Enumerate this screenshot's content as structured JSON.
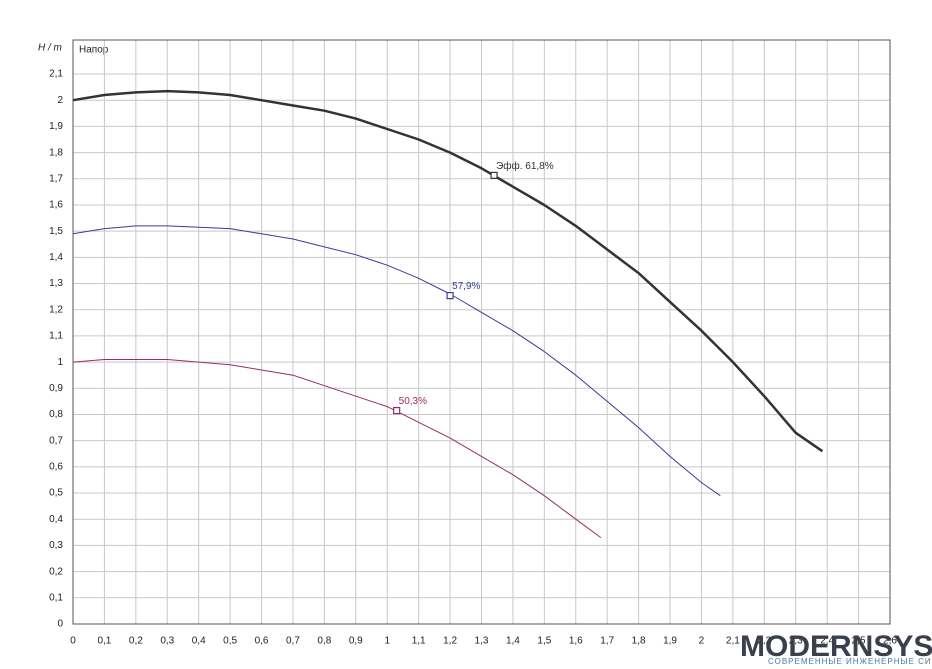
{
  "chart_data": {
    "type": "line",
    "y_label": "H / m",
    "y_label2": "Напор",
    "xlim": [
      0,
      2.6
    ],
    "ylim": [
      0,
      2.23
    ],
    "grid": true,
    "xticks": [
      0,
      {
        "value": 0.1,
        "label": "0,1"
      },
      {
        "value": 0.2,
        "label": "0,2"
      },
      {
        "value": 0.3,
        "label": "0,3"
      },
      {
        "value": 0.4,
        "label": "0,4"
      },
      {
        "value": 0.5,
        "label": "0,5"
      },
      {
        "value": 0.6,
        "label": "0,6"
      },
      {
        "value": 0.7,
        "label": "0,7"
      },
      {
        "value": 0.8,
        "label": "0,8"
      },
      {
        "value": 0.9,
        "label": "0,9"
      },
      1,
      {
        "value": 1.1,
        "label": "1,1"
      },
      {
        "value": 1.2,
        "label": "1,2"
      },
      {
        "value": 1.3,
        "label": "1,3"
      },
      {
        "value": 1.4,
        "label": "1,4"
      },
      {
        "value": 1.5,
        "label": "1,5"
      },
      {
        "value": 1.6,
        "label": "1,6"
      },
      {
        "value": 1.7,
        "label": "1,7"
      },
      {
        "value": 1.8,
        "label": "1,8"
      },
      {
        "value": 1.9,
        "label": "1,9"
      },
      2,
      {
        "value": 2.1,
        "label": "2,1"
      },
      {
        "value": 2.2,
        "label": "2,2"
      },
      {
        "value": 2.3,
        "label": "2,3"
      },
      {
        "value": 2.4,
        "label": "2,4"
      },
      {
        "value": 2.5,
        "label": "2,5"
      },
      {
        "value": 2.6,
        "label": "2,6"
      }
    ],
    "yticks": [
      0,
      {
        "value": 0.1,
        "label": "0,1"
      },
      {
        "value": 0.2,
        "label": "0,2"
      },
      {
        "value": 0.3,
        "label": "0,3"
      },
      {
        "value": 0.4,
        "label": "0,4"
      },
      {
        "value": 0.5,
        "label": "0,5"
      },
      {
        "value": 0.6,
        "label": "0,6"
      },
      {
        "value": 0.7,
        "label": "0,7"
      },
      {
        "value": 0.8,
        "label": "0,8"
      },
      {
        "value": 0.9,
        "label": "0,9"
      },
      1,
      {
        "value": 1.1,
        "label": "1,1"
      },
      {
        "value": 1.2,
        "label": "1,2"
      },
      {
        "value": 1.3,
        "label": "1,3"
      },
      {
        "value": 1.4,
        "label": "1,4"
      },
      {
        "value": 1.5,
        "label": "1,5"
      },
      {
        "value": 1.6,
        "label": "1,6"
      },
      {
        "value": 1.7,
        "label": "1,7"
      },
      {
        "value": 1.8,
        "label": "1,8"
      },
      {
        "value": 1.9,
        "label": "1,9"
      },
      2,
      {
        "value": 2.1,
        "label": "2,1"
      }
    ],
    "series": [
      {
        "color": "#333333",
        "width": 2.5,
        "x": [
          0,
          0.1,
          0.2,
          0.3,
          0.4,
          0.5,
          0.6,
          0.7,
          0.8,
          0.9,
          1.0,
          1.1,
          1.2,
          1.3,
          1.4,
          1.5,
          1.6,
          1.7,
          1.8,
          1.9,
          2.0,
          2.1,
          2.2,
          2.3,
          2.385
        ],
        "values": [
          2.0,
          2.02,
          2.03,
          2.035,
          2.03,
          2.02,
          2.0,
          1.98,
          1.96,
          1.93,
          1.89,
          1.85,
          1.8,
          1.74,
          1.67,
          1.6,
          1.52,
          1.43,
          1.34,
          1.23,
          1.12,
          1.0,
          0.87,
          0.73,
          0.66
        ],
        "point": {
          "x": 1.34,
          "y": 1.713,
          "label": "Эфф.  61,8%"
        }
      },
      {
        "color": "#3b3b9b",
        "width": 1,
        "x": [
          0,
          0.1,
          0.2,
          0.3,
          0.4,
          0.5,
          0.6,
          0.7,
          0.8,
          0.9,
          1.0,
          1.1,
          1.2,
          1.3,
          1.4,
          1.5,
          1.6,
          1.7,
          1.8,
          1.9,
          2.0,
          2.06
        ],
        "values": [
          1.49,
          1.51,
          1.52,
          1.52,
          1.515,
          1.51,
          1.49,
          1.47,
          1.44,
          1.41,
          1.37,
          1.32,
          1.26,
          1.19,
          1.12,
          1.04,
          0.95,
          0.85,
          0.75,
          0.64,
          0.54,
          0.49
        ],
        "point": {
          "x": 1.2,
          "y": 1.254,
          "label": "57,9%"
        }
      },
      {
        "color": "#9b2a6b",
        "width": 1,
        "x": [
          0,
          0.1,
          0.2,
          0.3,
          0.4,
          0.5,
          0.6,
          0.7,
          0.8,
          0.9,
          1.0,
          1.1,
          1.2,
          1.3,
          1.4,
          1.5,
          1.6,
          1.68
        ],
        "values": [
          1.0,
          1.01,
          1.01,
          1.01,
          1.0,
          0.99,
          0.97,
          0.95,
          0.91,
          0.87,
          0.83,
          0.77,
          0.71,
          0.64,
          0.57,
          0.49,
          0.4,
          0.33
        ],
        "point": {
          "x": 1.03,
          "y": 0.815,
          "label": "50,3%"
        }
      }
    ]
  },
  "watermark": {
    "name": "MODERNSYS",
    "tagline": "СОВРЕМЕННЫЕ ИНЖЕНЕРНЫЕ СИСТЕМЫ"
  }
}
